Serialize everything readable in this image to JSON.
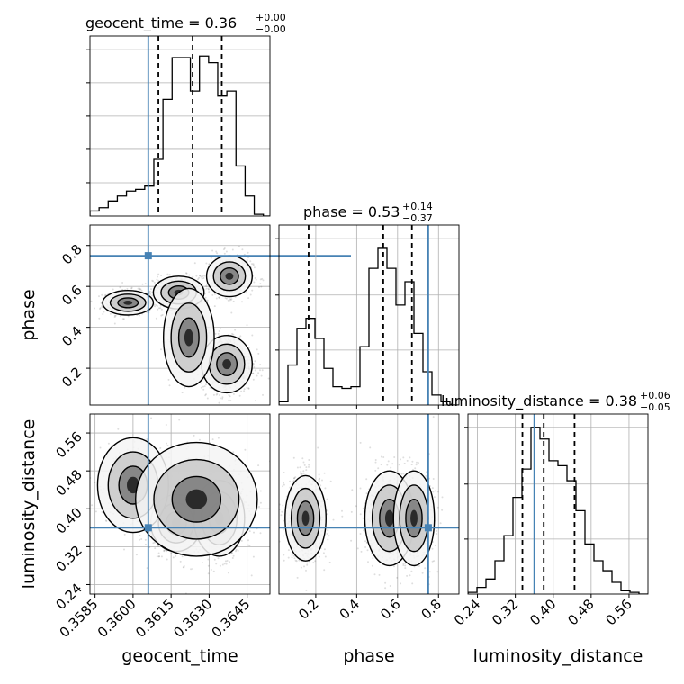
{
  "figure": {
    "type": "corner-plot",
    "parameters": [
      "geocent_time",
      "phase",
      "luminosity_distance"
    ],
    "truth_color": "#4682b4",
    "hist_color": "#000000"
  },
  "chart_data": [
    {
      "type": "histogram",
      "panel": "geocent_time",
      "title": {
        "main": "geocent_time = 0.36",
        "sup": "+0.00",
        "sub": "−0.00"
      },
      "xlim": [
        3583,
        3654
      ],
      "ylim": [
        0,
        1.08
      ],
      "yticks": [
        0.2,
        0.4,
        0.6,
        0.8,
        1.0
      ],
      "bins": [
        3583,
        3586.6,
        3590.2,
        3593.8,
        3597.4,
        3601,
        3604.6,
        3608.2,
        3611.8,
        3615.4,
        3619,
        3622.6,
        3626.2,
        3629.8,
        3633.4,
        3637,
        3640.6,
        3644.2,
        3647.8,
        3651.4,
        3655
      ],
      "values": [
        0.03,
        0.05,
        0.09,
        0.12,
        0.15,
        0.16,
        0.18,
        0.34,
        0.7,
        0.95,
        0.95,
        0.75,
        0.96,
        0.92,
        0.72,
        0.75,
        0.3,
        0.12,
        0.01,
        0.0
      ],
      "quantiles": [
        3610,
        3623.5,
        3635
      ],
      "truth": 3606
    },
    {
      "type": "scatter+contour",
      "panel": "phase vs geocent_time",
      "xlim": [
        3583,
        3654
      ],
      "ylim": [
        0.02,
        0.9
      ],
      "yticks": [
        0.2,
        0.4,
        0.6,
        0.8
      ],
      "ytick_labels": [
        "0.2",
        "0.4",
        "0.6",
        "0.8"
      ],
      "truth": {
        "x": 3606,
        "y": 0.75
      },
      "clusters": [
        {
          "cx": 3598,
          "cy": 0.52,
          "sx": 5.0,
          "sy": 0.03,
          "w": 0.25
        },
        {
          "cx": 3618,
          "cy": 0.57,
          "sx": 5.0,
          "sy": 0.04,
          "w": 0.35
        },
        {
          "cx": 3638,
          "cy": 0.65,
          "sx": 4.5,
          "sy": 0.05,
          "w": 0.25
        },
        {
          "cx": 3637,
          "cy": 0.22,
          "sx": 5.0,
          "sy": 0.07,
          "w": 0.45
        },
        {
          "cx": 3622,
          "cy": 0.35,
          "sx": 5.0,
          "sy": 0.12,
          "w": 0.1
        }
      ]
    },
    {
      "type": "histogram",
      "panel": "phase",
      "title": {
        "main": "phase = 0.53",
        "sup": "+0.14",
        "sub": "−0.37"
      },
      "xlim": [
        0.02,
        0.9
      ],
      "ylim": [
        0,
        1.08
      ],
      "yticks": [
        0.33,
        0.66,
        1.0
      ],
      "xticks": [
        0.2,
        0.4,
        0.6,
        0.8
      ],
      "xtick_labels": [
        "0.2",
        "0.4",
        "0.6",
        "0.8"
      ],
      "bins": [
        0.02,
        0.064,
        0.108,
        0.152,
        0.196,
        0.24,
        0.284,
        0.328,
        0.372,
        0.416,
        0.46,
        0.504,
        0.548,
        0.592,
        0.636,
        0.68,
        0.724,
        0.768,
        0.812,
        0.856,
        0.9
      ],
      "values": [
        0.02,
        0.24,
        0.46,
        0.52,
        0.4,
        0.22,
        0.11,
        0.1,
        0.11,
        0.35,
        0.82,
        0.94,
        0.82,
        0.6,
        0.74,
        0.43,
        0.2,
        0.06,
        0.02,
        0.0
      ],
      "quantiles": [
        0.165,
        0.53,
        0.67
      ],
      "truth": 0.75
    },
    {
      "type": "scatter+contour",
      "panel": "luminosity_distance vs geocent_time",
      "xlim": [
        3583,
        3654
      ],
      "ylim": [
        0.22,
        0.6
      ],
      "xticks": [
        3585,
        3600,
        3615,
        3630,
        3645
      ],
      "xtick_labels": [
        "0.3585",
        "0.3600",
        "0.3615",
        "0.3630",
        "0.3645"
      ],
      "yticks": [
        0.24,
        0.32,
        0.4,
        0.48,
        0.56
      ],
      "ytick_labels": [
        "0.24",
        "0.32",
        "0.40",
        "0.48",
        "0.56"
      ],
      "truth": {
        "x": 3606,
        "y": 0.36
      },
      "clusters": [
        {
          "cx": 3617,
          "cy": 0.37,
          "sx": 5.0,
          "sy": 0.03,
          "w": 0.35
        },
        {
          "cx": 3634,
          "cy": 0.38,
          "sx": 5.0,
          "sy": 0.04,
          "w": 0.35
        },
        {
          "cx": 3600,
          "cy": 0.45,
          "sx": 7.0,
          "sy": 0.05,
          "w": 0.15
        },
        {
          "cx": 3625,
          "cy": 0.42,
          "sx": 12.0,
          "sy": 0.06,
          "w": 0.15
        }
      ]
    },
    {
      "type": "scatter+contour",
      "panel": "luminosity_distance vs phase",
      "xlim": [
        0.02,
        0.9
      ],
      "ylim": [
        0.22,
        0.6
      ],
      "xticks": [
        0.2,
        0.4,
        0.6,
        0.8
      ],
      "xtick_labels": [
        "0.2",
        "0.4",
        "0.6",
        "0.8"
      ],
      "truth": {
        "x": 0.75,
        "y": 0.36
      },
      "clusters": [
        {
          "cx": 0.15,
          "cy": 0.38,
          "sx": 0.05,
          "sy": 0.045,
          "w": 0.4
        },
        {
          "cx": 0.56,
          "cy": 0.38,
          "sx": 0.06,
          "sy": 0.05,
          "w": 0.35
        },
        {
          "cx": 0.68,
          "cy": 0.38,
          "sx": 0.05,
          "sy": 0.05,
          "w": 0.25
        }
      ]
    },
    {
      "type": "histogram",
      "panel": "luminosity_distance",
      "title": {
        "main": "luminosity_distance = 0.38",
        "sup": "+0.06",
        "sub": "−0.05"
      },
      "xlim": [
        0.22,
        0.6
      ],
      "ylim": [
        0,
        1.08
      ],
      "yticks": [
        0.33,
        0.66,
        1.0
      ],
      "xticks": [
        0.24,
        0.32,
        0.4,
        0.48,
        0.56
      ],
      "xtick_labels": [
        "0.24",
        "0.32",
        "0.40",
        "0.48",
        "0.56"
      ],
      "bins": [
        0.22,
        0.239,
        0.258,
        0.277,
        0.296,
        0.315,
        0.334,
        0.353,
        0.372,
        0.391,
        0.41,
        0.429,
        0.448,
        0.467,
        0.486,
        0.505,
        0.524,
        0.543,
        0.562,
        0.581,
        0.6
      ],
      "values": [
        0.01,
        0.04,
        0.09,
        0.2,
        0.35,
        0.58,
        0.75,
        1.0,
        0.93,
        0.8,
        0.77,
        0.68,
        0.5,
        0.3,
        0.2,
        0.14,
        0.07,
        0.02,
        0.01,
        0.0
      ],
      "quantiles": [
        0.335,
        0.38,
        0.445
      ],
      "truth": 0.36
    }
  ],
  "axis_labels": {
    "x": [
      "geocent_time",
      "phase",
      "luminosity_distance"
    ],
    "y": [
      "phase",
      "luminosity_distance"
    ]
  }
}
